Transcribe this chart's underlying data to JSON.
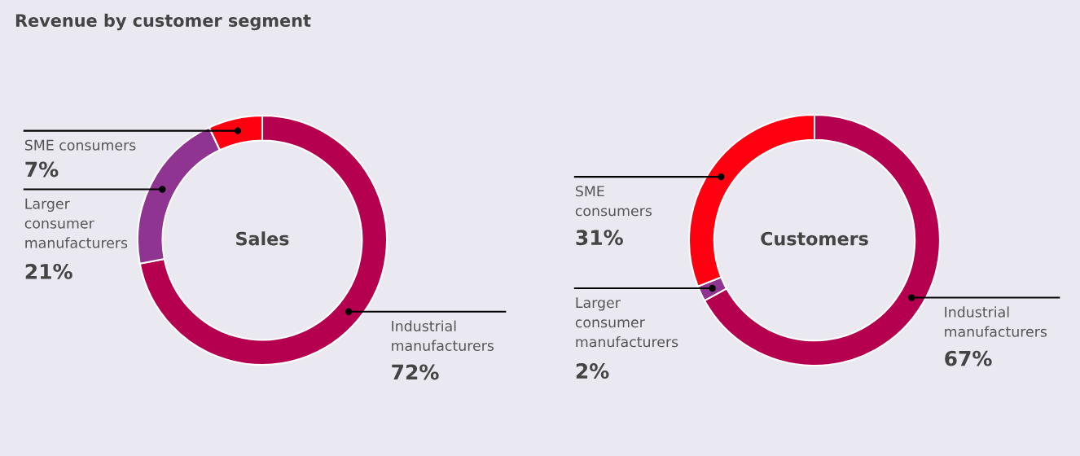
{
  "chart_data": [
    {
      "type": "donut",
      "title": "Revenue by customer segment",
      "annotations": [
        "Sales"
      ],
      "categories": [
        "Industrial\nmanufacturers",
        "Larger\nconsumer\nmanufacturers",
        "SME consumers"
      ],
      "values": [
        72,
        21,
        7
      ],
      "value_labels": [
        "72%",
        "21%",
        "7%"
      ],
      "colors": [
        "#b5004f",
        "#8f3490",
        "#ff0011"
      ]
    },
    {
      "type": "donut",
      "annotations": [
        "Customers"
      ],
      "categories": [
        "Industrial\nmanufacturers",
        "Larger\nconsumer\nmanufacturers",
        "SME\nconsumers"
      ],
      "values": [
        67,
        2,
        31
      ],
      "value_labels": [
        "67%",
        "2%",
        "31%"
      ],
      "colors": [
        "#b5004f",
        "#8f3490",
        "#ff0011"
      ]
    }
  ]
}
